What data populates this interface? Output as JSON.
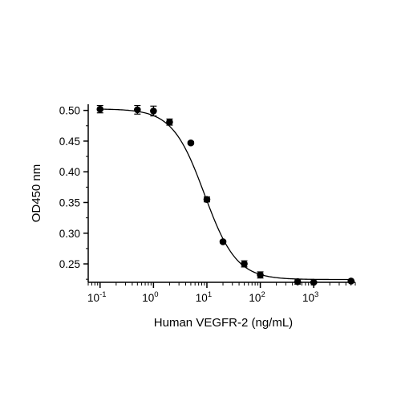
{
  "chart_data": {
    "type": "scatter",
    "title": "",
    "xlabel": "Human VEGFR-2 (ng/mL)",
    "ylabel": "OD450 nm",
    "x_scale": "log",
    "xlim": [
      0.06,
      6000
    ],
    "ylim": [
      0.22,
      0.51
    ],
    "x_ticks": [
      {
        "value": 0.1,
        "base": "10",
        "exp": "-1"
      },
      {
        "value": 1,
        "base": "10",
        "exp": "0"
      },
      {
        "value": 10,
        "base": "10",
        "exp": "1"
      },
      {
        "value": 100,
        "base": "10",
        "exp": "2"
      },
      {
        "value": 1000,
        "base": "10",
        "exp": "3"
      }
    ],
    "y_ticks": [
      {
        "value": 0.25,
        "label": "0.25"
      },
      {
        "value": 0.3,
        "label": "0.30"
      },
      {
        "value": 0.35,
        "label": "0.35"
      },
      {
        "value": 0.4,
        "label": "0.40"
      },
      {
        "value": 0.45,
        "label": "0.45"
      },
      {
        "value": 0.5,
        "label": "0.50"
      }
    ],
    "series": [
      {
        "x": [
          0.1,
          0.5,
          1,
          2,
          5,
          10,
          20,
          50,
          100,
          500,
          1000,
          5000
        ],
        "y": [
          0.502,
          0.501,
          0.499,
          0.481,
          0.447,
          0.355,
          0.286,
          0.25,
          0.232,
          0.221,
          0.22,
          0.222
        ],
        "err": [
          0.006,
          0.007,
          0.008,
          0.005,
          0.002,
          0.004,
          0.002,
          0.005,
          0.005,
          0.004,
          0.002,
          0.001
        ]
      }
    ],
    "fit_curve": {
      "bottom": 0.2245,
      "top": 0.5025,
      "ec50": 9.0,
      "hill": 1.45
    },
    "grid": false,
    "legend": "none",
    "color": "#000000"
  }
}
